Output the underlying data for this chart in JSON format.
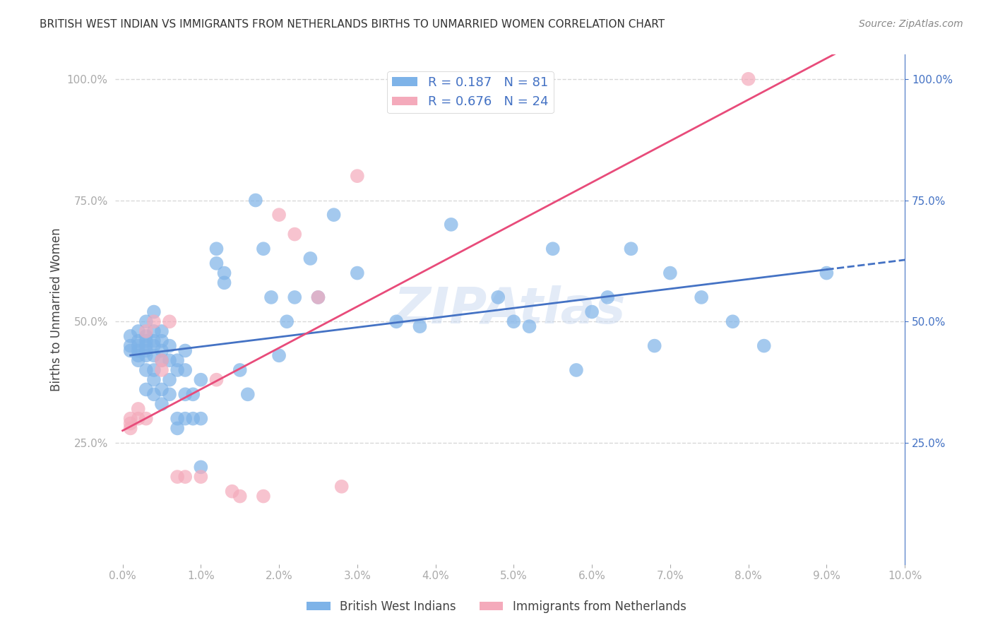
{
  "title": "BRITISH WEST INDIAN VS IMMIGRANTS FROM NETHERLANDS BIRTHS TO UNMARRIED WOMEN CORRELATION CHART",
  "source": "Source: ZipAtlas.com",
  "xlabel": "",
  "ylabel": "Births to Unmarried Women",
  "legend_bottom": [
    "British West Indians",
    "Immigrants from Netherlands"
  ],
  "r_blue": 0.187,
  "n_blue": 81,
  "r_pink": 0.676,
  "n_pink": 24,
  "xlim": [
    0.0,
    0.1
  ],
  "ylim": [
    0.0,
    1.05
  ],
  "xticks": [
    0.0,
    0.01,
    0.02,
    0.03,
    0.04,
    0.05,
    0.06,
    0.07,
    0.08,
    0.09,
    0.1
  ],
  "xticklabels": [
    "0.0%",
    "1.0%",
    "2.0%",
    "3.0%",
    "4.0%",
    "5.0%",
    "6.0%",
    "7.0%",
    "8.0%",
    "9.0%",
    "10.0%"
  ],
  "yticks": [
    0.25,
    0.5,
    0.75,
    1.0
  ],
  "yticklabels": [
    "25.0%",
    "50.0%",
    "75.0%",
    "100.0%"
  ],
  "blue_color": "#7EB3E8",
  "pink_color": "#F4AABB",
  "trend_blue": "#4472C4",
  "trend_pink": "#E84B7A",
  "blue_scatter_x": [
    0.001,
    0.001,
    0.001,
    0.002,
    0.002,
    0.002,
    0.002,
    0.002,
    0.002,
    0.003,
    0.003,
    0.003,
    0.003,
    0.003,
    0.003,
    0.003,
    0.003,
    0.004,
    0.004,
    0.004,
    0.004,
    0.004,
    0.004,
    0.004,
    0.004,
    0.005,
    0.005,
    0.005,
    0.005,
    0.005,
    0.005,
    0.006,
    0.006,
    0.006,
    0.006,
    0.007,
    0.007,
    0.007,
    0.007,
    0.008,
    0.008,
    0.008,
    0.008,
    0.009,
    0.009,
    0.01,
    0.01,
    0.01,
    0.012,
    0.012,
    0.013,
    0.013,
    0.015,
    0.016,
    0.017,
    0.018,
    0.019,
    0.02,
    0.021,
    0.022,
    0.024,
    0.025,
    0.027,
    0.03,
    0.035,
    0.038,
    0.042,
    0.048,
    0.05,
    0.052,
    0.055,
    0.058,
    0.06,
    0.062,
    0.065,
    0.068,
    0.07,
    0.074,
    0.078,
    0.082,
    0.09
  ],
  "blue_scatter_y": [
    0.44,
    0.45,
    0.47,
    0.42,
    0.43,
    0.44,
    0.45,
    0.46,
    0.48,
    0.36,
    0.4,
    0.43,
    0.44,
    0.45,
    0.46,
    0.47,
    0.5,
    0.35,
    0.38,
    0.4,
    0.43,
    0.45,
    0.46,
    0.48,
    0.52,
    0.33,
    0.36,
    0.42,
    0.44,
    0.46,
    0.48,
    0.35,
    0.38,
    0.42,
    0.45,
    0.28,
    0.3,
    0.4,
    0.42,
    0.3,
    0.35,
    0.4,
    0.44,
    0.3,
    0.35,
    0.2,
    0.3,
    0.38,
    0.62,
    0.65,
    0.6,
    0.58,
    0.4,
    0.35,
    0.75,
    0.65,
    0.55,
    0.43,
    0.5,
    0.55,
    0.63,
    0.55,
    0.72,
    0.6,
    0.5,
    0.49,
    0.7,
    0.55,
    0.5,
    0.49,
    0.65,
    0.4,
    0.52,
    0.55,
    0.65,
    0.45,
    0.6,
    0.55,
    0.5,
    0.45,
    0.6
  ],
  "pink_scatter_x": [
    0.001,
    0.001,
    0.001,
    0.002,
    0.002,
    0.003,
    0.003,
    0.004,
    0.005,
    0.005,
    0.006,
    0.007,
    0.008,
    0.01,
    0.012,
    0.014,
    0.015,
    0.018,
    0.02,
    0.022,
    0.025,
    0.028,
    0.03,
    0.08
  ],
  "pink_scatter_y": [
    0.28,
    0.29,
    0.3,
    0.3,
    0.32,
    0.3,
    0.48,
    0.5,
    0.4,
    0.42,
    0.5,
    0.18,
    0.18,
    0.18,
    0.38,
    0.15,
    0.14,
    0.14,
    0.72,
    0.68,
    0.55,
    0.16,
    0.8,
    1.0
  ],
  "background_color": "#FFFFFF",
  "grid_color": "#D8D8D8",
  "watermark_text": "ZIPAtlas",
  "watermark_color": "#C8D8F0",
  "right_axis_color": "#4472C4"
}
